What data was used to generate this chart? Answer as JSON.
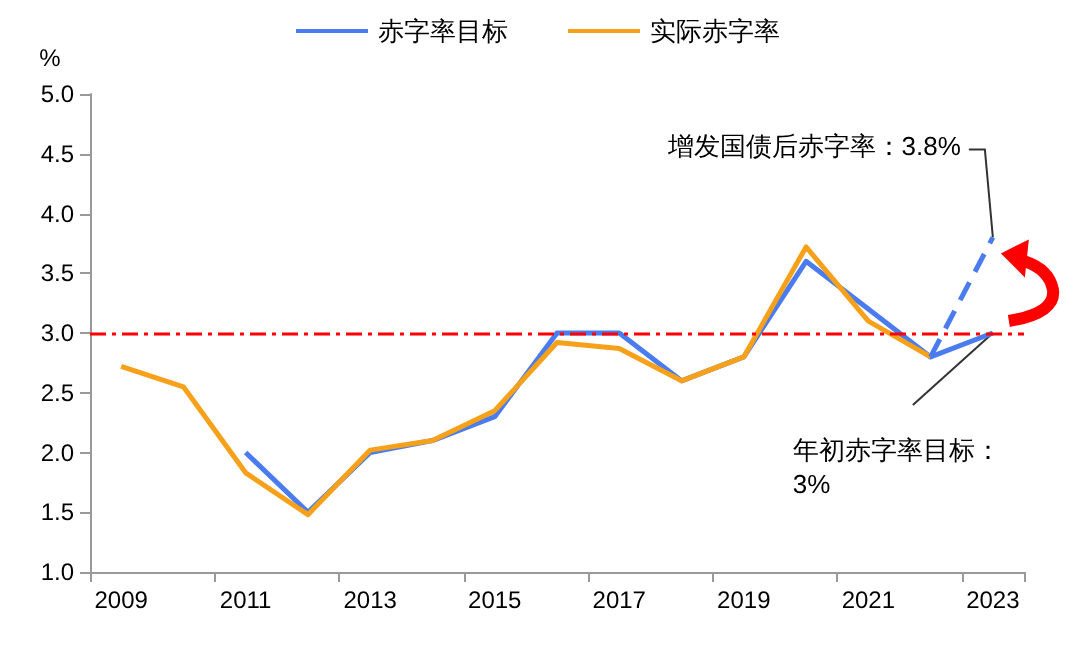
{
  "chart_data": {
    "type": "line",
    "ylabel": "%",
    "categories": [
      "2009",
      null,
      "2011",
      null,
      "2013",
      null,
      "2015",
      null,
      "2017",
      null,
      "2019",
      null,
      "2021",
      null,
      "2023"
    ],
    "series": [
      {
        "name": "赤字率目标",
        "color": "#4a7cf0",
        "values": [
          null,
          null,
          2.0,
          1.5,
          2.0,
          2.1,
          2.3,
          3.0,
          3.0,
          2.6,
          2.8,
          3.6,
          3.2,
          2.8,
          3.0
        ]
      },
      {
        "name": "实际赤字率",
        "color": "#f7a11a",
        "values": [
          2.72,
          2.55,
          1.83,
          1.48,
          2.02,
          2.1,
          2.35,
          2.92,
          2.87,
          2.6,
          2.8,
          3.72,
          3.1,
          2.8,
          null
        ]
      },
      {
        "color": "#4a7cf0",
        "line_style": "dashed",
        "values": [
          null,
          null,
          null,
          null,
          null,
          null,
          null,
          null,
          null,
          null,
          null,
          null,
          null,
          2.8,
          3.8
        ]
      }
    ],
    "ylim": [
      1.0,
      5.0
    ],
    "yticks": [
      {
        "value": 1,
        "label": "1.0"
      },
      {
        "value": 1.5,
        "label": "1.5"
      },
      {
        "value": 2,
        "label": "2.0"
      },
      {
        "value": 2.5,
        "label": "2.5"
      },
      {
        "value": 3,
        "label": "3.0"
      },
      {
        "value": 3.5,
        "label": "3.5"
      },
      {
        "value": 4,
        "label": "4.0"
      },
      {
        "value": 4.5,
        "label": "4.5"
      },
      {
        "value": 5,
        "label": "5.0"
      }
    ],
    "ref_lines": [
      {
        "axis": "y",
        "value": 3.0,
        "color": "#ff0000",
        "line_style": "dashed"
      }
    ],
    "annotations": [
      {
        "text": "增发国债后赤字率：3.8%",
        "x": "2023",
        "y": 3.8
      },
      {
        "text": "年初赤字率目标：3%",
        "x": "2023",
        "y": 3.0
      }
    ],
    "legend": "top",
    "grid": false,
    "marker": "none",
    "line_style": "solid"
  }
}
